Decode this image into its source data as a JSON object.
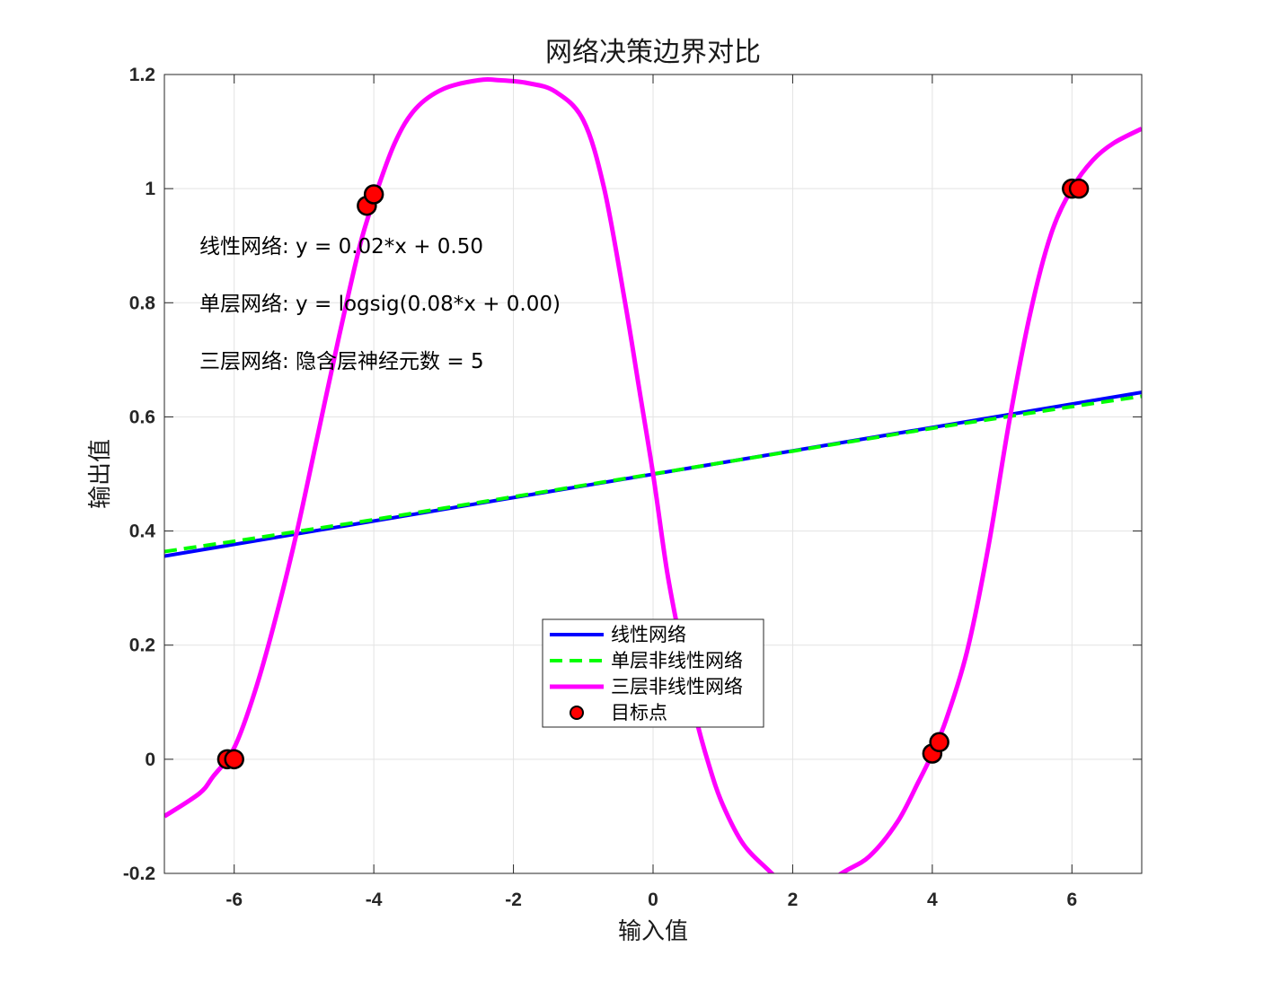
{
  "chart_data": {
    "type": "line",
    "title": "网络决策边界对比",
    "xlabel": "输入值",
    "ylabel": "输出值",
    "xlim": [
      -7,
      7
    ],
    "ylim": [
      -0.2,
      1.2
    ],
    "xticks": [
      -6,
      -4,
      -2,
      0,
      2,
      4,
      6
    ],
    "xtick_labels": [
      "-6",
      "-4",
      "-2",
      "0",
      "2",
      "4",
      "6"
    ],
    "yticks": [
      -0.2,
      0,
      0.2,
      0.4,
      0.6,
      0.8,
      1,
      1.2
    ],
    "ytick_labels": [
      "-0.2",
      "0",
      "0.2",
      "0.4",
      "0.6",
      "0.8",
      "1",
      "1.2"
    ],
    "grid": true,
    "legend_position": "lower-center",
    "annotations": [
      "线性网络: y = 0.02*x + 0.50",
      "单层网络: y = logsig(0.08*x + 0.00)",
      "三层网络: 隐含层神经元数 = 5"
    ],
    "series": [
      {
        "name": "线性网络",
        "style": "solid",
        "color": "#0000ff",
        "x": [
          -7,
          7
        ],
        "y": [
          0.356,
          0.643
        ]
      },
      {
        "name": "单层非线性网络",
        "style": "dashed",
        "color": "#00ff00",
        "x": [
          -7,
          -6,
          -5,
          -4,
          -3,
          -2,
          -1,
          0,
          1,
          2,
          3,
          4,
          5,
          6,
          7
        ],
        "y": [
          0.364,
          0.382,
          0.401,
          0.42,
          0.44,
          0.46,
          0.48,
          0.5,
          0.52,
          0.54,
          0.56,
          0.58,
          0.599,
          0.618,
          0.636
        ]
      },
      {
        "name": "三层非线性网络",
        "style": "solid",
        "color": "#ff00ff",
        "x": [
          -7,
          -6.5,
          -6.3,
          -6,
          -5.7,
          -5.4,
          -5.1,
          -4.8,
          -4.5,
          -4.2,
          -4,
          -3.7,
          -3.4,
          -3,
          -2.5,
          -2.2,
          -1.8,
          -1.4,
          -1,
          -0.7,
          -0.4,
          -0.2,
          0,
          0.2,
          0.4,
          0.6,
          0.8,
          1,
          1.3,
          1.7,
          2.1,
          2.7,
          3.1,
          3.5,
          3.8,
          4,
          4.2,
          4.5,
          4.8,
          5.1,
          5.4,
          5.7,
          6,
          6.3,
          6.6,
          7
        ],
        "y": [
          -0.1,
          -0.06,
          -0.03,
          0.02,
          0.12,
          0.25,
          0.4,
          0.57,
          0.74,
          0.9,
          0.98,
          1.08,
          1.14,
          1.175,
          1.19,
          1.19,
          1.185,
          1.17,
          1.12,
          1.0,
          0.8,
          0.65,
          0.5,
          0.33,
          0.2,
          0.08,
          -0.01,
          -0.08,
          -0.15,
          -0.2,
          -0.25,
          -0.2,
          -0.17,
          -0.11,
          -0.04,
          0.01,
          0.07,
          0.19,
          0.37,
          0.59,
          0.78,
          0.92,
          1.0,
          1.05,
          1.08,
          1.105
        ]
      },
      {
        "name": "目标点",
        "style": "markers",
        "color": "#ff0000",
        "x": [
          -6.1,
          -6.0,
          -4.1,
          -4.0,
          4.0,
          4.1,
          6.0,
          6.1
        ],
        "y": [
          0.0,
          0.0,
          0.97,
          0.99,
          0.01,
          0.03,
          1.0,
          1.0
        ]
      }
    ]
  }
}
